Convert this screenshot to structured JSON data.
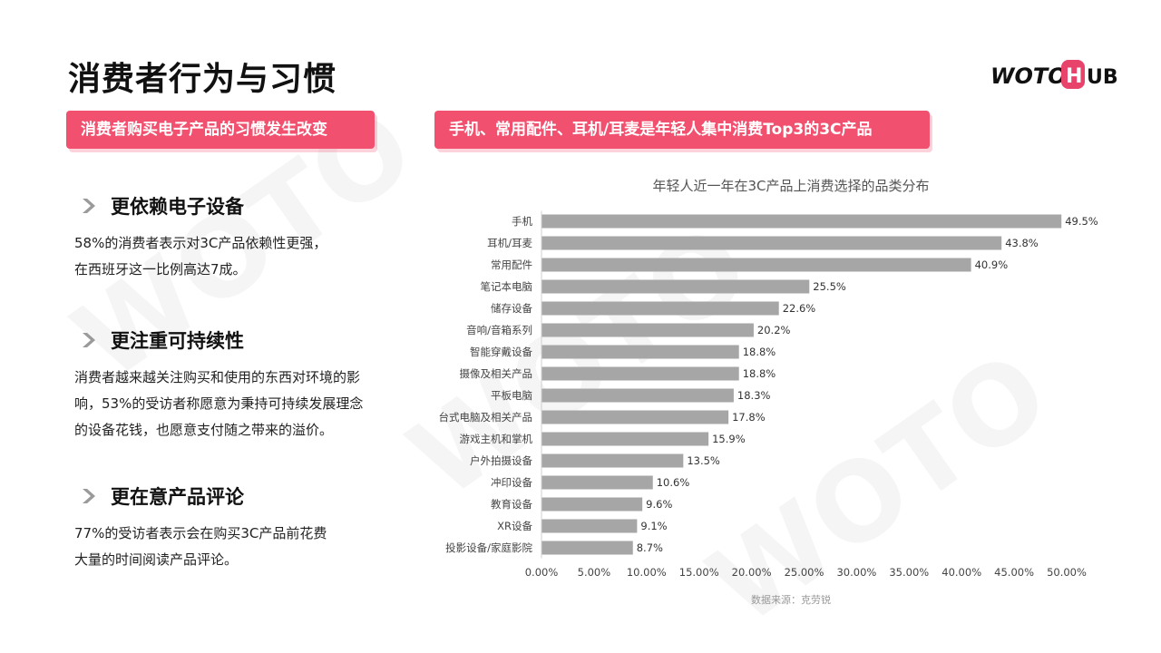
{
  "title": "消费者行为与习惯",
  "logo": {
    "text": "WOTOHUB",
    "brand_color": "#e8436a"
  },
  "left_section": {
    "header": "消费者购买电子产品的习惯发生改变",
    "points": [
      {
        "title": "更依赖电子设备",
        "lines": [
          "58%的消费者表示对3C产品依赖性更强，",
          "在西班牙这一比例高达7成。"
        ]
      },
      {
        "title": "更注重可持续性",
        "lines": [
          "消费者越来越关注购买和使用的东西对环境的影",
          "响，53%的受访者称愿意为秉持可持续发展理念",
          "的设备花钱，也愿意支付随之带来的溢价。"
        ]
      },
      {
        "title": "更在意产品评论",
        "lines": [
          "77%的受访者表示会在购买3C产品前花费",
          "大量的时间阅读产品评论。"
        ]
      }
    ]
  },
  "right_section": {
    "header": "手机、常用配件、耳机/耳麦是年轻人集中消费Top3的3C产品"
  },
  "chart_data": {
    "type": "bar",
    "orientation": "horizontal",
    "title": "年轻人近一年在3C产品上消费选择的品类分布",
    "categories": [
      "手机",
      "耳机/耳麦",
      "常用配件",
      "笔记本电脑",
      "储存设备",
      "音响/音箱系列",
      "智能穿戴设备",
      "摄像及相关产品",
      "平板电脑",
      "台式电脑及相关产品",
      "游戏主机和掌机",
      "户外拍摄设备",
      "冲印设备",
      "教育设备",
      "XR设备",
      "投影设备/家庭影院"
    ],
    "values": [
      49.5,
      43.8,
      40.9,
      25.5,
      22.6,
      20.2,
      18.8,
      18.8,
      18.3,
      17.8,
      15.9,
      13.5,
      10.6,
      9.6,
      9.1,
      8.7
    ],
    "value_labels": [
      "49.5%",
      "43.8%",
      "40.9%",
      "25.5%",
      "22.6%",
      "20.2%",
      "18.8%",
      "18.8%",
      "18.3%",
      "17.8%",
      "15.9%",
      "13.5%",
      "10.6%",
      "9.6%",
      "9.1%",
      "8.7%"
    ],
    "x_ticks": [
      "0.00%",
      "5.00%",
      "10.00%",
      "15.00%",
      "20.00%",
      "25.00%",
      "30.00%",
      "35.00%",
      "40.00%",
      "45.00%",
      "50.00%"
    ],
    "xlim": [
      0,
      50
    ],
    "bar_color": "#a6a6a6",
    "grid": false,
    "source": "数据来源：克劳锐"
  },
  "colors": {
    "accent": "#f2506f",
    "bar": "#a6a6a6"
  }
}
